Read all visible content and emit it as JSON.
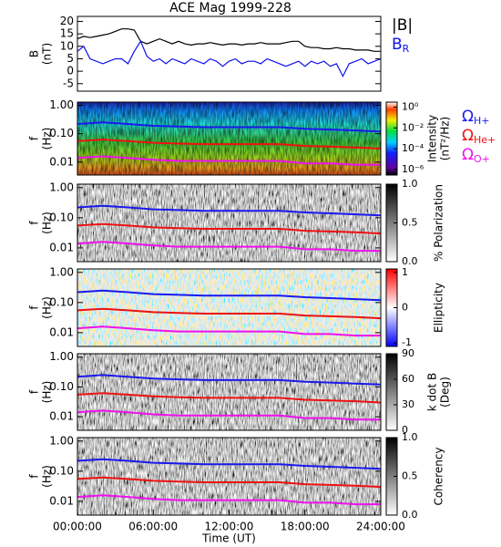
{
  "chart_data": [
    {
      "type": "line",
      "title": "ACE Mag 1999-228",
      "ylabel": [
        "B",
        "(nT)"
      ],
      "xlim": [
        0,
        24
      ],
      "ylim": [
        -8,
        22
      ],
      "yticks": [
        -5,
        0,
        5,
        10,
        15,
        20
      ],
      "x": [
        0,
        0.5,
        1,
        1.5,
        2,
        2.5,
        3,
        3.5,
        4,
        4.5,
        5,
        5.5,
        6,
        6.5,
        7,
        7.5,
        8,
        8.5,
        9,
        9.5,
        10,
        10.5,
        11,
        11.5,
        12,
        12.5,
        13,
        13.5,
        14,
        14.5,
        15,
        15.5,
        16,
        16.5,
        17,
        17.5,
        18,
        18.5,
        19,
        19.5,
        20,
        20.5,
        21,
        21.5,
        22,
        22.5,
        23,
        23.5,
        24
      ],
      "series": [
        {
          "name": "|B|",
          "color": "#000000",
          "values": [
            13,
            14,
            13.5,
            14,
            14.5,
            15,
            16,
            17,
            17,
            16.5,
            12,
            11,
            12,
            13,
            12,
            11,
            12,
            11,
            10.5,
            11,
            11,
            11.5,
            11,
            10.5,
            11,
            11,
            10.5,
            11,
            11,
            11.5,
            11,
            11,
            11,
            11.5,
            12,
            12,
            10,
            9.5,
            9.5,
            9,
            9,
            9.5,
            9,
            9,
            8.5,
            8.5,
            8.5,
            8,
            8
          ]
        },
        {
          "name": "B",
          "subscript": "R",
          "color": "#1010ee",
          "values": [
            8,
            10,
            5,
            4,
            3,
            4,
            5,
            5,
            3,
            8,
            12,
            6,
            4,
            5,
            3,
            5,
            4,
            3,
            5,
            4,
            3,
            5,
            4,
            2,
            4,
            5,
            3,
            4,
            4,
            3,
            5,
            4,
            3,
            2,
            3,
            4,
            2,
            4,
            3,
            4,
            2,
            3,
            -2,
            3,
            4,
            5,
            3,
            4,
            5
          ]
        }
      ]
    },
    {
      "type": "spectrogram",
      "ylabel": [
        "f",
        "(Hz)"
      ],
      "log_y": true,
      "colormap": "rainbow",
      "xlim": [
        0,
        24
      ],
      "ylim": [
        0.0035,
        1.3
      ],
      "yticks": [
        {
          "value": 1,
          "label": "1.00"
        },
        {
          "value": 0.1,
          "label": "0.10"
        },
        {
          "value": 0.01,
          "label": "0.01"
        }
      ],
      "colorbar_label": [
        "Intensity",
        "(nT²/Hz)"
      ],
      "log_z": true,
      "zlim": [
        3e-07,
        3
      ],
      "zticks": [
        {
          "value": 1,
          "label": "10⁰"
        },
        {
          "value": 0.01,
          "label": "10⁻²"
        },
        {
          "value": 0.0001,
          "label": "10⁻⁴"
        },
        {
          "value": 1e-06,
          "label": "10⁻⁶"
        }
      ],
      "x": [
        0,
        2,
        4,
        6,
        8,
        10,
        12,
        14,
        16,
        18,
        20,
        22,
        24
      ],
      "series": [
        {
          "name": "Ω",
          "subscript": "H+",
          "color": "#1a1aee",
          "values": [
            0.22,
            0.25,
            0.22,
            0.19,
            0.18,
            0.17,
            0.17,
            0.17,
            0.17,
            0.15,
            0.14,
            0.13,
            0.12
          ]
        },
        {
          "name": "Ω",
          "subscript": "He+",
          "color": "#ee1111",
          "values": [
            0.055,
            0.062,
            0.055,
            0.048,
            0.045,
            0.043,
            0.043,
            0.043,
            0.043,
            0.037,
            0.035,
            0.033,
            0.03
          ]
        },
        {
          "name": "Ω",
          "subscript": "O+",
          "color": "#ee11ee",
          "values": [
            0.014,
            0.016,
            0.014,
            0.012,
            0.011,
            0.011,
            0.011,
            0.011,
            0.011,
            0.009,
            0.009,
            0.008,
            0.008
          ]
        }
      ]
    },
    {
      "type": "spectrogram",
      "ylabel": [
        "f",
        "(Hz)"
      ],
      "log_y": true,
      "colormap": "gray",
      "xlim": [
        0,
        24
      ],
      "ylim": [
        0.0035,
        1.3
      ],
      "yticks": [
        {
          "value": 1,
          "label": "1.00"
        },
        {
          "value": 0.1,
          "label": "0.10"
        },
        {
          "value": 0.01,
          "label": "0.01"
        }
      ],
      "colorbar_label": [
        "% Polarization"
      ],
      "zlim": [
        0,
        1
      ],
      "zticks": [
        {
          "value": 0,
          "label": "0.0"
        },
        {
          "value": 0.5,
          "label": "0.5"
        },
        {
          "value": 1,
          "label": "1.0"
        }
      ],
      "x": [
        0,
        2,
        4,
        6,
        8,
        10,
        12,
        14,
        16,
        18,
        20,
        22,
        24
      ],
      "series": [
        {
          "color": "#1a1aee",
          "values": [
            0.22,
            0.25,
            0.22,
            0.19,
            0.18,
            0.17,
            0.17,
            0.17,
            0.17,
            0.15,
            0.14,
            0.13,
            0.12
          ]
        },
        {
          "color": "#ee1111",
          "values": [
            0.055,
            0.062,
            0.055,
            0.048,
            0.045,
            0.043,
            0.043,
            0.043,
            0.043,
            0.037,
            0.035,
            0.033,
            0.03
          ]
        },
        {
          "color": "#ee11ee",
          "values": [
            0.014,
            0.016,
            0.014,
            0.012,
            0.011,
            0.011,
            0.011,
            0.011,
            0.011,
            0.009,
            0.009,
            0.008,
            0.008
          ]
        }
      ]
    },
    {
      "type": "spectrogram",
      "ylabel": [
        "f",
        "(Hz)"
      ],
      "log_y": true,
      "colormap": "bwr",
      "xlim": [
        0,
        24
      ],
      "ylim": [
        0.0035,
        1.3
      ],
      "yticks": [
        {
          "value": 1,
          "label": "1.00"
        },
        {
          "value": 0.1,
          "label": "0.10"
        },
        {
          "value": 0.01,
          "label": "0.01"
        }
      ],
      "colorbar_label": [
        "Ellipticity"
      ],
      "zlim": [
        -1.1,
        1.1
      ],
      "zticks": [
        1,
        0,
        -1
      ],
      "x": [
        0,
        2,
        4,
        6,
        8,
        10,
        12,
        14,
        16,
        18,
        20,
        22,
        24
      ],
      "series": [
        {
          "color": "#1a1aee",
          "values": [
            0.22,
            0.25,
            0.22,
            0.19,
            0.18,
            0.17,
            0.17,
            0.17,
            0.17,
            0.15,
            0.14,
            0.13,
            0.12
          ]
        },
        {
          "color": "#ee1111",
          "values": [
            0.055,
            0.062,
            0.055,
            0.048,
            0.045,
            0.043,
            0.043,
            0.043,
            0.043,
            0.037,
            0.035,
            0.033,
            0.03
          ]
        },
        {
          "color": "#ee11ee",
          "values": [
            0.014,
            0.016,
            0.014,
            0.012,
            0.011,
            0.011,
            0.011,
            0.011,
            0.011,
            0.009,
            0.009,
            0.008,
            0.008
          ]
        }
      ]
    },
    {
      "type": "spectrogram",
      "ylabel": [
        "f",
        "(Hz)"
      ],
      "log_y": true,
      "colormap": "gray",
      "xlim": [
        0,
        24
      ],
      "ylim": [
        0.0035,
        1.3
      ],
      "yticks": [
        {
          "value": 1,
          "label": "1.00"
        },
        {
          "value": 0.1,
          "label": "0.10"
        },
        {
          "value": 0.01,
          "label": "0.01"
        }
      ],
      "colorbar_label": [
        "k dot B",
        "(Deg)"
      ],
      "zlim": [
        0,
        90
      ],
      "zticks": [
        0,
        30,
        60,
        90
      ],
      "x": [
        0,
        2,
        4,
        6,
        8,
        10,
        12,
        14,
        16,
        18,
        20,
        22,
        24
      ],
      "series": [
        {
          "color": "#1a1aee",
          "values": [
            0.22,
            0.25,
            0.22,
            0.19,
            0.18,
            0.17,
            0.17,
            0.17,
            0.17,
            0.15,
            0.14,
            0.13,
            0.12
          ]
        },
        {
          "color": "#ee1111",
          "values": [
            0.055,
            0.062,
            0.055,
            0.048,
            0.045,
            0.043,
            0.043,
            0.043,
            0.043,
            0.037,
            0.035,
            0.033,
            0.03
          ]
        },
        {
          "color": "#ee11ee",
          "values": [
            0.014,
            0.016,
            0.014,
            0.012,
            0.011,
            0.011,
            0.011,
            0.011,
            0.011,
            0.009,
            0.009,
            0.008,
            0.008
          ]
        }
      ]
    },
    {
      "type": "spectrogram",
      "ylabel": [
        "f",
        "(Hz)"
      ],
      "log_y": true,
      "colormap": "gray",
      "xlim": [
        0,
        24
      ],
      "ylim": [
        0.0035,
        1.3
      ],
      "yticks": [
        {
          "value": 1,
          "label": "1.00"
        },
        {
          "value": 0.1,
          "label": "0.10"
        },
        {
          "value": 0.01,
          "label": "0.01"
        }
      ],
      "colorbar_label": [
        "Coherency"
      ],
      "zlim": [
        0,
        1
      ],
      "zticks": [
        {
          "value": 0,
          "label": "0.0"
        },
        {
          "value": 0.5,
          "label": "0.5"
        },
        {
          "value": 1,
          "label": "1.0"
        }
      ],
      "xlabel": "Time (UT)",
      "xticks": [
        {
          "value": 0,
          "label": "00:00:00"
        },
        {
          "value": 6,
          "label": "06:00:00"
        },
        {
          "value": 12,
          "label": "12:00:00"
        },
        {
          "value": 18,
          "label": "18:00:00"
        },
        {
          "value": 24,
          "label": "24:00:00"
        }
      ],
      "x": [
        0,
        2,
        4,
        6,
        8,
        10,
        12,
        14,
        16,
        18,
        20,
        22,
        24
      ],
      "series": [
        {
          "color": "#1a1aee",
          "values": [
            0.22,
            0.25,
            0.22,
            0.19,
            0.18,
            0.17,
            0.17,
            0.17,
            0.17,
            0.15,
            0.14,
            0.13,
            0.12
          ]
        },
        {
          "color": "#ee1111",
          "values": [
            0.055,
            0.062,
            0.055,
            0.048,
            0.045,
            0.043,
            0.043,
            0.043,
            0.043,
            0.037,
            0.035,
            0.033,
            0.03
          ]
        },
        {
          "color": "#ee11ee",
          "values": [
            0.014,
            0.016,
            0.014,
            0.012,
            0.011,
            0.011,
            0.011,
            0.011,
            0.011,
            0.009,
            0.009,
            0.008,
            0.008
          ]
        }
      ]
    }
  ]
}
